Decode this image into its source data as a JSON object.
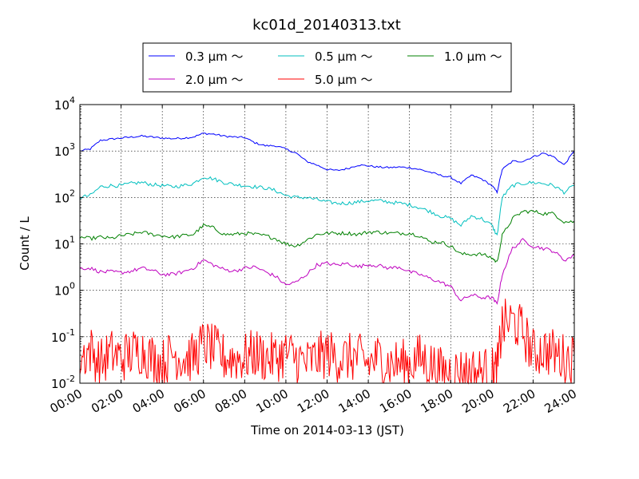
{
  "chart_data": {
    "type": "line",
    "title": "kc01d_20140313.txt",
    "xlabel": "Time on 2014-03-13 (JST)",
    "ylabel": "Count / L",
    "y_scale": "log",
    "ylim": [
      0.01,
      10000
    ],
    "xlim": [
      "00:00",
      "24:00"
    ],
    "grid": true,
    "legend_position": "top-center",
    "x_tick_labels": [
      "00:00",
      "02:00",
      "04:00",
      "06:00",
      "08:00",
      "10:00",
      "12:00",
      "14:00",
      "16:00",
      "18:00",
      "20:00",
      "22:00",
      "24:00"
    ],
    "y_tick_labels": [
      {
        "base": "10",
        "exp": "-2"
      },
      {
        "base": "10",
        "exp": "-1"
      },
      {
        "base": "10",
        "exp": "0"
      },
      {
        "base": "10",
        "exp": "1"
      },
      {
        "base": "10",
        "exp": "2"
      },
      {
        "base": "10",
        "exp": "3"
      },
      {
        "base": "10",
        "exp": "4"
      }
    ],
    "x_hours": [
      0,
      0.5,
      1,
      1.5,
      2,
      2.5,
      3,
      3.5,
      4,
      4.5,
      5,
      5.5,
      6,
      6.5,
      7,
      7.5,
      8,
      8.5,
      9,
      9.5,
      10,
      10.5,
      11,
      11.5,
      12,
      12.5,
      13,
      13.5,
      14,
      14.5,
      15,
      15.5,
      16,
      16.5,
      17,
      17.5,
      18,
      18.5,
      19,
      19.5,
      20,
      20.25,
      20.5,
      21,
      21.5,
      22,
      22.5,
      23,
      23.5,
      24
    ],
    "series": [
      {
        "name": "0.3 μm ～",
        "color": "#0000ff",
        "values": [
          1000,
          1100,
          1700,
          1800,
          1900,
          2000,
          2100,
          2000,
          1900,
          1850,
          1900,
          2000,
          2400,
          2300,
          2100,
          2000,
          1950,
          1500,
          1300,
          1300,
          1100,
          900,
          600,
          500,
          400,
          380,
          420,
          500,
          480,
          450,
          440,
          450,
          440,
          400,
          350,
          300,
          270,
          200,
          300,
          250,
          180,
          130,
          400,
          600,
          600,
          750,
          900,
          750,
          500,
          1000
        ]
      },
      {
        "name": "0.5 μm ～",
        "color": "#00bfbf",
        "values": [
          100,
          110,
          170,
          180,
          180,
          200,
          210,
          190,
          180,
          170,
          180,
          200,
          280,
          250,
          210,
          190,
          180,
          170,
          160,
          140,
          110,
          100,
          100,
          90,
          80,
          75,
          75,
          80,
          85,
          85,
          80,
          75,
          70,
          60,
          50,
          40,
          35,
          25,
          40,
          35,
          25,
          15,
          100,
          180,
          200,
          210,
          200,
          180,
          130,
          180
        ]
      },
      {
        "name": "1.0 μm ～",
        "color": "#008000",
        "values": [
          14,
          13,
          14,
          13,
          15,
          16,
          18,
          16,
          15,
          14,
          15,
          16,
          25,
          22,
          16,
          16,
          17,
          16,
          15,
          13,
          10,
          9,
          12,
          16,
          17,
          17,
          17,
          16,
          18,
          18,
          17,
          17,
          17,
          15,
          11,
          11,
          9,
          6,
          6,
          6,
          5,
          4,
          15,
          35,
          50,
          50,
          45,
          45,
          30,
          30
        ]
      },
      {
        "name": "2.0 μm ～",
        "color": "#bf00bf",
        "values": [
          3,
          3,
          2.5,
          2.5,
          2.4,
          2.6,
          3,
          2.7,
          2.2,
          2.2,
          2.5,
          3,
          4.5,
          3.5,
          2.8,
          2.6,
          3,
          3.2,
          2.5,
          2,
          1.3,
          1.5,
          2.2,
          3.5,
          3.8,
          3.5,
          3.8,
          3.2,
          3.6,
          3.4,
          3,
          3.2,
          2.5,
          2.2,
          1.8,
          1.5,
          1.2,
          0.6,
          0.8,
          0.7,
          0.7,
          0.5,
          2.2,
          8,
          12,
          9,
          8,
          7,
          4.5,
          5.5
        ]
      },
      {
        "name": "5.0 μm ～",
        "color": "#ff0000",
        "values": [
          0.04,
          0.06,
          0.03,
          0.05,
          0.04,
          0.05,
          0.06,
          0.04,
          0.03,
          0.05,
          0.04,
          0.04,
          0.08,
          0.06,
          0.04,
          0.04,
          0.04,
          0.05,
          0.04,
          0.04,
          0.05,
          0.04,
          0.03,
          0.04,
          0.05,
          0.04,
          0.04,
          0.04,
          0.03,
          0.04,
          0.03,
          0.03,
          0.03,
          0.04,
          0.03,
          0.02,
          0.02,
          0.02,
          0.02,
          0.02,
          0.02,
          0.02,
          0.2,
          0.25,
          0.15,
          0.05,
          0.06,
          0.05,
          0.04,
          0.04
        ]
      }
    ]
  }
}
